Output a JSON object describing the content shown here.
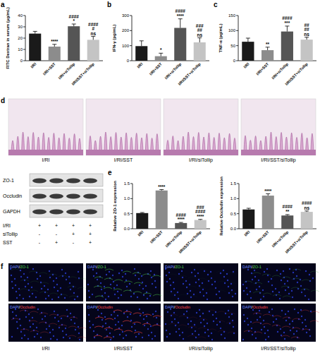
{
  "chart_data": [
    {
      "type": "bar",
      "panel_label": "a",
      "y_label": "FITC Dextran in serum (μg/mL)",
      "categories": [
        "I/RI",
        "I/RI+SST",
        "I/RI+siTollip",
        "I/RI/SST+siTollip"
      ],
      "values": [
        24,
        12.5,
        30.5,
        18.5
      ],
      "errors": [
        2,
        2,
        2,
        3
      ],
      "annotations": [
        [],
        [
          "****"
        ],
        [
          "*",
          "####"
        ],
        [
          "ns",
          "#",
          "####"
        ]
      ],
      "colors": [
        "#1a1a1a",
        "#8c8c8c",
        "#555555",
        "#c4c4c4"
      ],
      "ylim": [
        0,
        40
      ],
      "yticks": [
        0,
        10,
        20,
        30,
        40
      ]
    },
    {
      "type": "bar",
      "panel_label": "b",
      "y_label": "IFN-γ (pg/mL)",
      "categories": [
        "I/RI",
        "I/RI+SST",
        "I/RI+siTollip",
        "I/RI/SST+siTollip"
      ],
      "values": [
        97,
        30,
        218,
        122
      ],
      "errors": [
        35,
        20,
        60,
        30
      ],
      "annotations": [
        [],
        [
          "*"
        ],
        [
          "****",
          "####"
        ],
        [
          "ns",
          "##",
          "###"
        ]
      ],
      "colors": [
        "#1a1a1a",
        "#8c8c8c",
        "#555555",
        "#c4c4c4"
      ],
      "ylim": [
        0,
        300
      ],
      "yticks": [
        0,
        100,
        200,
        300
      ]
    },
    {
      "type": "bar",
      "panel_label": "c",
      "y_label": "TNF-α (pg/mL)",
      "categories": [
        "I/RI",
        "I/RI+SST",
        "I/RI+siTollip",
        "I/RI/SST+siTollip"
      ],
      "values": [
        63,
        35,
        97,
        70
      ],
      "errors": [
        12,
        10,
        18,
        8
      ],
      "annotations": [
        [],
        [
          "**"
        ],
        [
          "***",
          "####"
        ],
        [
          "ns",
          "##",
          "##"
        ]
      ],
      "colors": [
        "#1a1a1a",
        "#8c8c8c",
        "#555555",
        "#c4c4c4"
      ],
      "ylim": [
        0,
        150
      ],
      "yticks": [
        0,
        50,
        100,
        150
      ]
    },
    {
      "type": "bar",
      "panel_label": "e",
      "y_label": "Relative ZO-1 expression",
      "categories": [
        "I/RI",
        "I/RI+SST",
        "I/RI+siTollip",
        "I/RI/SST+siTollip"
      ],
      "values": [
        0.52,
        1.27,
        0.19,
        0.29
      ],
      "errors": [
        0.02,
        0.03,
        0.02,
        0.02
      ],
      "annotations": [
        [],
        [
          "****"
        ],
        [
          "****",
          "####"
        ],
        [
          "****",
          "####",
          "###"
        ]
      ],
      "colors": [
        "#1a1a1a",
        "#8c8c8c",
        "#555555",
        "#c4c4c4"
      ],
      "ylim": [
        0,
        1.5
      ],
      "yticks": [
        {
          "value": 0,
          "label": "0.0"
        },
        {
          "value": 0.5,
          "label": "0.5"
        },
        {
          "value": 1,
          "label": "1.0"
        },
        {
          "value": 1.5,
          "label": "1.5"
        }
      ]
    },
    {
      "type": "bar",
      "y_label": "Relative Occludin expression",
      "categories": [
        "I/RI",
        "I/RI+SST",
        "I/RI+siTollip",
        "I/RI/SST+siTollip"
      ],
      "values": [
        0.64,
        1.1,
        0.44,
        0.56
      ],
      "errors": [
        0.04,
        0.06,
        0.03,
        0.03
      ],
      "annotations": [
        [],
        [
          "****"
        ],
        [
          "**",
          "####"
        ],
        [
          "ns",
          "####"
        ]
      ],
      "colors": [
        "#1a1a1a",
        "#8c8c8c",
        "#555555",
        "#c4c4c4"
      ],
      "ylim": [
        0,
        1.5
      ],
      "yticks": [
        {
          "value": 0,
          "label": "0.0"
        },
        {
          "value": 0.5,
          "label": "0.5"
        },
        {
          "value": 1,
          "label": "1.0"
        },
        {
          "value": 1.5,
          "label": "1.5"
        }
      ]
    }
  ],
  "panel_d": {
    "panel_label": "d",
    "images": [
      "I/RI",
      "I/RI/SST",
      "I/RI/siTollip",
      "I/RI/SST/siTollip"
    ]
  },
  "blot": {
    "rows": [
      "ZO-1",
      "Occludin",
      "GAPDH"
    ],
    "conditions": [
      {
        "label": "I/RI",
        "values": [
          "+",
          "+",
          "+",
          "+"
        ]
      },
      {
        "label": "siTollip",
        "values": [
          "-",
          "-",
          "+",
          "+"
        ]
      },
      {
        "label": "SST",
        "values": [
          "-",
          "+",
          "-",
          "+"
        ]
      }
    ]
  },
  "panel_f": {
    "panel_label": "f",
    "rows": [
      [
        "DAPI",
        "/",
        "ZO-1"
      ],
      [
        "DAPI",
        "/",
        "Occludin"
      ]
    ],
    "columns": [
      "I/RI",
      "I/RI/SST",
      "I/RI/siTollip",
      "I/RI/SST/siTollip"
    ]
  }
}
